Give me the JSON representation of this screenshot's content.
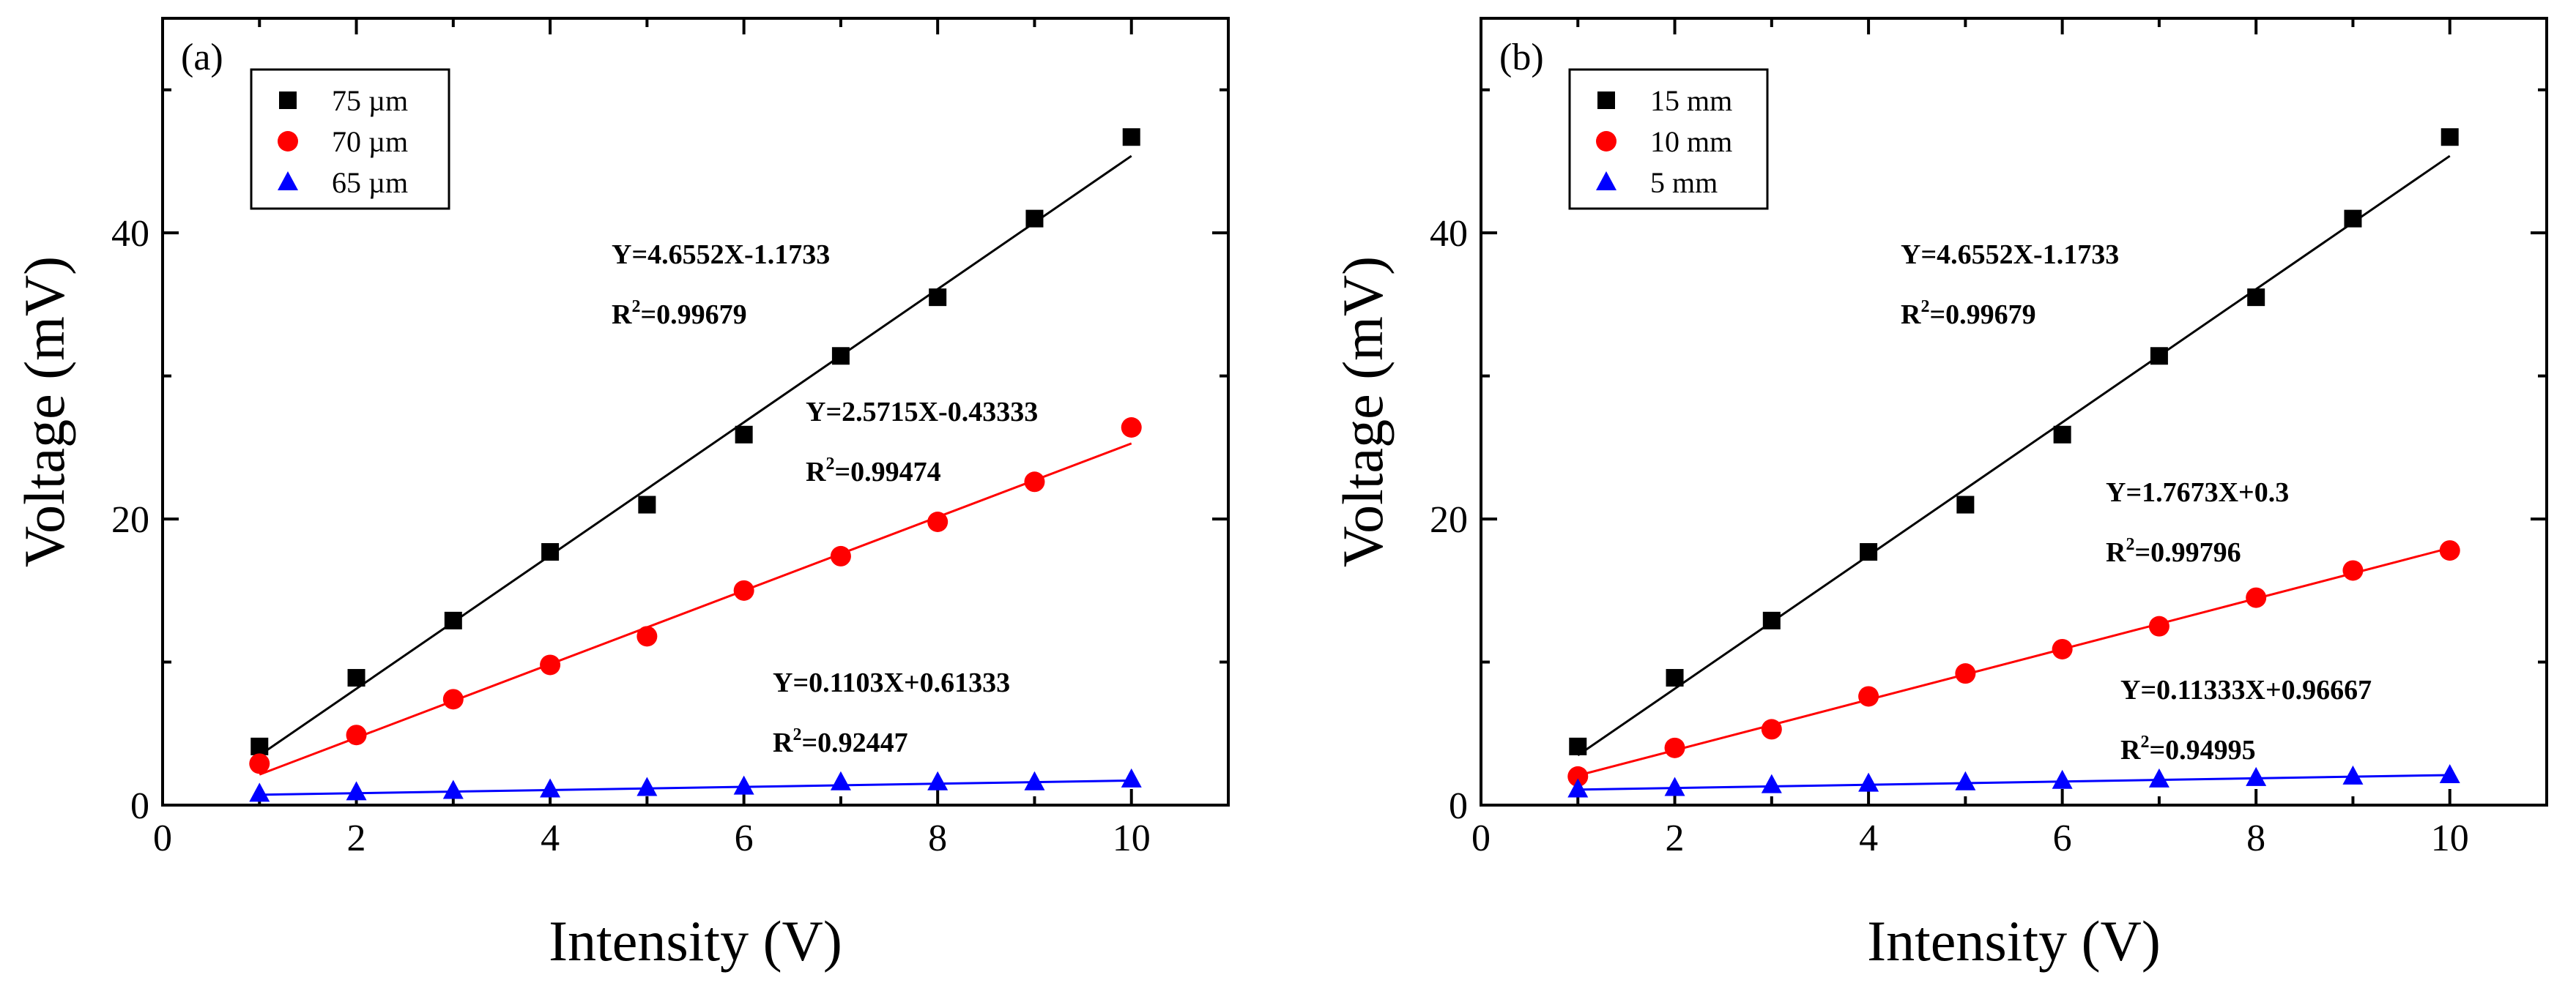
{
  "chart_data": [
    {
      "type": "scatter",
      "panel_label": "(a)",
      "xlabel": "Intensity (V)",
      "ylabel": "Voltage (mV)",
      "xlim": [
        0,
        11
      ],
      "ylim": [
        0,
        55
      ],
      "xticks": [
        0,
        2,
        4,
        6,
        8,
        10
      ],
      "yticks": [
        0,
        20,
        40
      ],
      "legend_position": "top-left",
      "series": [
        {
          "name": "75 µm",
          "color": "#000000",
          "marker": "square",
          "x": [
            1,
            2,
            3,
            4,
            5,
            6,
            7,
            8,
            9,
            10
          ],
          "y": [
            4.1,
            8.9,
            12.9,
            17.7,
            21.0,
            25.9,
            31.4,
            35.5,
            41.0,
            46.7
          ],
          "fit": {
            "slope": 4.6552,
            "intercept": -1.1733
          },
          "equation": "Y=4.6552X-1.1733",
          "r2_value": "=0.99679"
        },
        {
          "name": "70 µm",
          "color": "#ff0000",
          "marker": "circle",
          "x": [
            1,
            2,
            3,
            4,
            5,
            6,
            7,
            8,
            9,
            10
          ],
          "y": [
            2.9,
            4.9,
            7.4,
            9.8,
            11.8,
            15.0,
            17.4,
            19.8,
            22.6,
            26.4
          ],
          "fit": {
            "slope": 2.5715,
            "intercept": -0.43333
          },
          "equation": "Y=2.5715X-0.43333",
          "r2_value": "=0.99474"
        },
        {
          "name": "65 µm",
          "color": "#0000ff",
          "marker": "triangle",
          "x": [
            1,
            2,
            3,
            4,
            5,
            6,
            7,
            8,
            9,
            10
          ],
          "y": [
            0.8,
            0.9,
            1.0,
            1.1,
            1.2,
            1.3,
            1.6,
            1.6,
            1.6,
            1.8
          ],
          "fit": {
            "slope": 0.1103,
            "intercept": 0.61333
          },
          "equation": "Y=0.1103X+0.61333",
          "r2_value": "=0.92447"
        }
      ]
    },
    {
      "type": "scatter",
      "panel_label": "(b)",
      "xlabel": "Intensity (V)",
      "ylabel": "Voltage (mV)",
      "xlim": [
        0,
        11
      ],
      "ylim": [
        0,
        55
      ],
      "xticks": [
        0,
        2,
        4,
        6,
        8,
        10
      ],
      "yticks": [
        0,
        20,
        40
      ],
      "legend_position": "top-left",
      "series": [
        {
          "name": "15 mm",
          "color": "#000000",
          "marker": "square",
          "x": [
            1,
            2,
            3,
            4,
            5,
            6,
            7,
            8,
            9,
            10
          ],
          "y": [
            4.1,
            8.9,
            12.9,
            17.7,
            21.0,
            25.9,
            31.4,
            35.5,
            41.0,
            46.7
          ],
          "fit": {
            "slope": 4.6552,
            "intercept": -1.1733
          },
          "equation": "Y=4.6552X-1.1733",
          "r2_value": "=0.99679"
        },
        {
          "name": "10 mm",
          "color": "#ff0000",
          "marker": "circle",
          "x": [
            1,
            2,
            3,
            4,
            5,
            6,
            7,
            8,
            9,
            10
          ],
          "y": [
            2.0,
            4.0,
            5.3,
            7.6,
            9.2,
            10.9,
            12.5,
            14.5,
            16.4,
            17.8
          ],
          "fit": {
            "slope": 1.7673,
            "intercept": 0.3
          },
          "equation": "Y=1.7673X+0.3",
          "r2_value": "=0.99796"
        },
        {
          "name": "5 mm",
          "color": "#0000ff",
          "marker": "triangle",
          "x": [
            1,
            2,
            3,
            4,
            5,
            6,
            7,
            8,
            9,
            10
          ],
          "y": [
            1.1,
            1.2,
            1.4,
            1.5,
            1.6,
            1.7,
            1.8,
            1.9,
            2.0,
            2.1
          ],
          "fit": {
            "slope": 0.11333,
            "intercept": 0.96667
          },
          "equation": "Y=0.11333X+0.96667",
          "r2_value": "=0.94995"
        }
      ]
    }
  ]
}
